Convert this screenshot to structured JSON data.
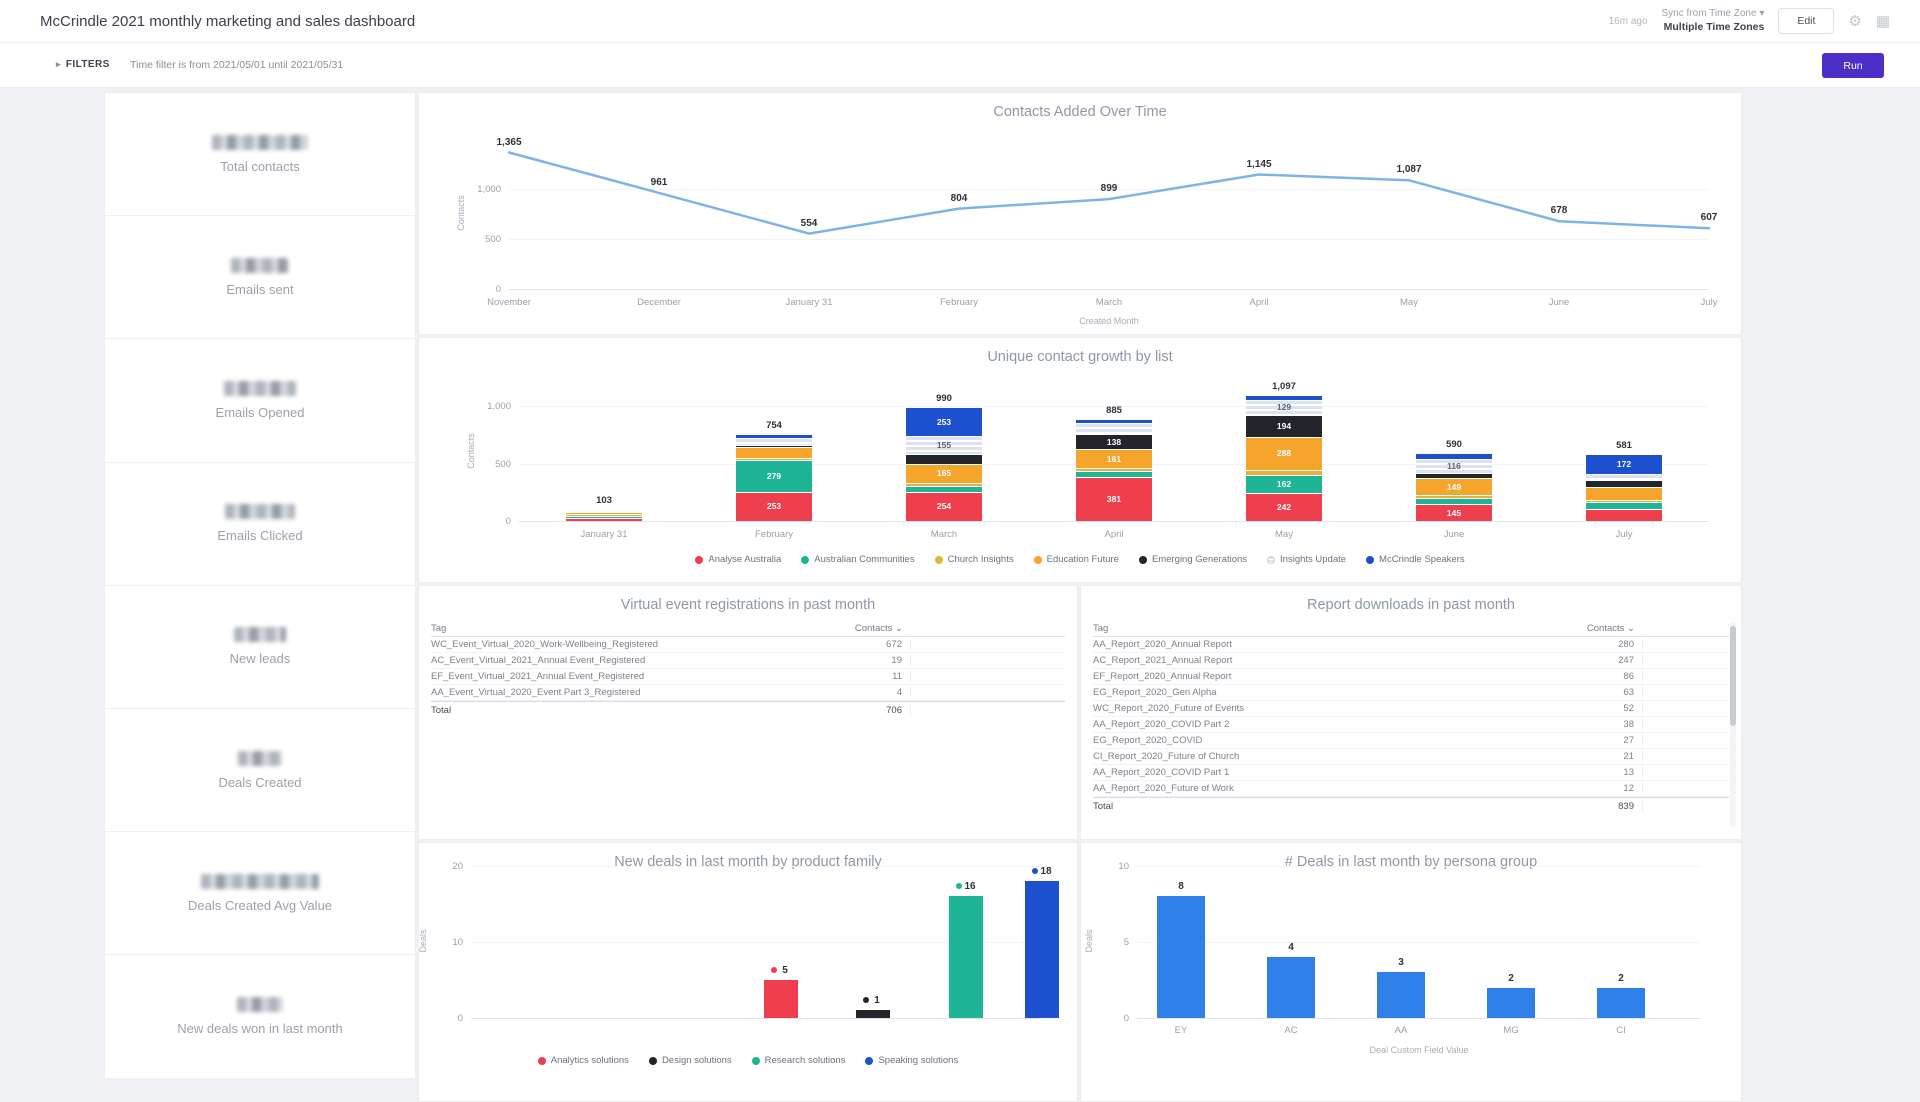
{
  "header": {
    "title": "McCrindle 2021 monthly marketing and sales dashboard",
    "synced_ago": "16m ago",
    "sync_label": "Sync from Time Zone",
    "timezone": "Multiple Time Zones",
    "edit_label": "Edit"
  },
  "filters": {
    "label": "FILTERS",
    "time_filter": "Time filter is from 2021/05/01 until 2021/05/31",
    "run_label": "Run"
  },
  "icons": {
    "gear": "⚙",
    "grid": "▦",
    "caret_down": "▾",
    "caret_right": "▸",
    "sort": "⌄"
  },
  "kpis": [
    {
      "label": "Total contacts",
      "value_redacted": true,
      "blur_width": 96
    },
    {
      "label": "Emails sent",
      "value_redacted": true,
      "blur_width": 58
    },
    {
      "label": "Emails Opened",
      "value_redacted": true,
      "blur_width": 72
    },
    {
      "label": "Emails Clicked",
      "value_redacted": true,
      "blur_width": 70
    },
    {
      "label": "New leads",
      "value_redacted": true,
      "blur_width": 52
    },
    {
      "label": "Deals Created",
      "value_redacted": true,
      "blur_width": 44
    },
    {
      "label": "Deals Created Avg Value",
      "value_redacted": true,
      "blur_width": 118
    },
    {
      "label": "New deals won in last month",
      "value_redacted": true,
      "blur_width": 46
    }
  ],
  "chart_data": [
    {
      "id": "contacts_over_time",
      "type": "line",
      "title": "Contacts Added Over Time",
      "ylabel": "Contacts",
      "xlabel": "Created Month",
      "ylim": [
        0,
        1500
      ],
      "yticks": [
        0,
        500,
        1000
      ],
      "categories": [
        "November",
        "December",
        "January 31",
        "February",
        "March",
        "April",
        "May",
        "June",
        "July"
      ],
      "values": [
        1365,
        961,
        554,
        804,
        899,
        1145,
        1087,
        678,
        607
      ],
      "line_color": "#7fb3e8"
    },
    {
      "id": "contact_growth",
      "type": "stacked_bar",
      "title": "Unique contact growth by list",
      "ylabel": "Contacts",
      "ylim": [
        0,
        1200
      ],
      "yticks": [
        0,
        500,
        1000
      ],
      "categories": [
        "January 31",
        "February",
        "March",
        "April",
        "May",
        "June",
        "July"
      ],
      "totals": [
        103,
        754,
        990,
        885,
        1097,
        590,
        581
      ],
      "series": [
        {
          "name": "Analyse Australia",
          "color": "#ef3e4e",
          "values": [
            28,
            253,
            254,
            381,
            242,
            145,
            101
          ]
        },
        {
          "name": "Australian Communities",
          "color": "#1db596",
          "values": [
            18,
            279,
            48,
            50,
            162,
            52,
            60
          ]
        },
        {
          "name": "Church Insights",
          "color": "#e6b23c",
          "values": [
            12,
            20,
            30,
            30,
            40,
            25,
            25
          ]
        },
        {
          "name": "Education Future",
          "color": "#f5a42c",
          "values": [
            20,
            94,
            165,
            161,
            288,
            149,
            107
          ]
        },
        {
          "name": "Emerging Generations",
          "color": "#23242c",
          "values": [
            10,
            18,
            85,
            138,
            194,
            48,
            65
          ]
        },
        {
          "name": "Insights Update",
          "color": "#dce3ee",
          "striped": true,
          "values": [
            8,
            62,
            155,
            90,
            129,
            116,
            51
          ]
        },
        {
          "name": "McCrindle Speakers",
          "color": "#1d50cf",
          "values": [
            7,
            28,
            253,
            35,
            42,
            55,
            172
          ]
        }
      ],
      "legend_position": "bottom"
    },
    {
      "id": "product_family",
      "type": "bar",
      "title": "New deals in last month by product family",
      "ylabel": "Deals",
      "ylim": [
        0,
        20
      ],
      "yticks": [
        0,
        10,
        20
      ],
      "series": [
        {
          "name": "Analytics solutions",
          "color": "#ef3e4e",
          "value": 5
        },
        {
          "name": "Design solutions",
          "color": "#23242c",
          "value": 1
        },
        {
          "name": "Research solutions",
          "color": "#1db596",
          "value": 16
        },
        {
          "name": "Speaking solutions",
          "color": "#1d50cf",
          "value": 18
        }
      ],
      "legend_position": "bottom"
    },
    {
      "id": "persona_group",
      "type": "bar",
      "title": "# Deals in last month by persona group",
      "ylabel": "Deals",
      "xlabel": "Deal Custom Field Value",
      "ylim": [
        0,
        10
      ],
      "yticks": [
        0,
        5,
        10
      ],
      "categories": [
        "EY",
        "AC",
        "AA",
        "MG",
        "CI"
      ],
      "values": [
        8,
        4,
        3,
        2,
        2
      ],
      "bar_color": "#2f80e8"
    }
  ],
  "tables": {
    "event_registrations": {
      "title": "Virtual event registrations in past month",
      "columns": [
        "Tag",
        "Contacts"
      ],
      "rows": [
        {
          "tag": "WC_Event_Virtual_2020_Work-Wellbeing_Registered",
          "contacts": 672
        },
        {
          "tag": "AC_Event_Virtual_2021_Annual Event_Registered",
          "contacts": 19
        },
        {
          "tag": "EF_Event_Virtual_2021_Annual Event_Registered",
          "contacts": 11
        },
        {
          "tag": "AA_Event_Virtual_2020_Event Part 3_Registered",
          "contacts": 4
        }
      ],
      "total_label": "Total",
      "total": 706
    },
    "report_downloads": {
      "title": "Report downloads in past month",
      "columns": [
        "Tag",
        "Contacts"
      ],
      "rows": [
        {
          "tag": "AA_Report_2020_Annual Report",
          "contacts": 280
        },
        {
          "tag": "AC_Report_2021_Annual Report",
          "contacts": 247
        },
        {
          "tag": "EF_Report_2020_Annual Report",
          "contacts": 86
        },
        {
          "tag": "EG_Report_2020_Gen Alpha",
          "contacts": 63
        },
        {
          "tag": "WC_Report_2020_Future of Events",
          "contacts": 52
        },
        {
          "tag": "AA_Report_2020_COVID Part 2",
          "contacts": 38
        },
        {
          "tag": "EG_Report_2020_COVID",
          "contacts": 27
        },
        {
          "tag": "CI_Report_2020_Future of Church",
          "contacts": 21
        },
        {
          "tag": "AA_Report_2020_COVID Part 1",
          "contacts": 13
        },
        {
          "tag": "AA_Report_2020_Future of Work",
          "contacts": 12
        }
      ],
      "total_label": "Total",
      "total": 839
    }
  },
  "colors": {
    "accent_purple": "#4b2fc6",
    "line_blue": "#7fb3e8",
    "bar_blue": "#2f80e8",
    "panel_bg": "#ffffff",
    "page_bg": "#eff1f4"
  }
}
